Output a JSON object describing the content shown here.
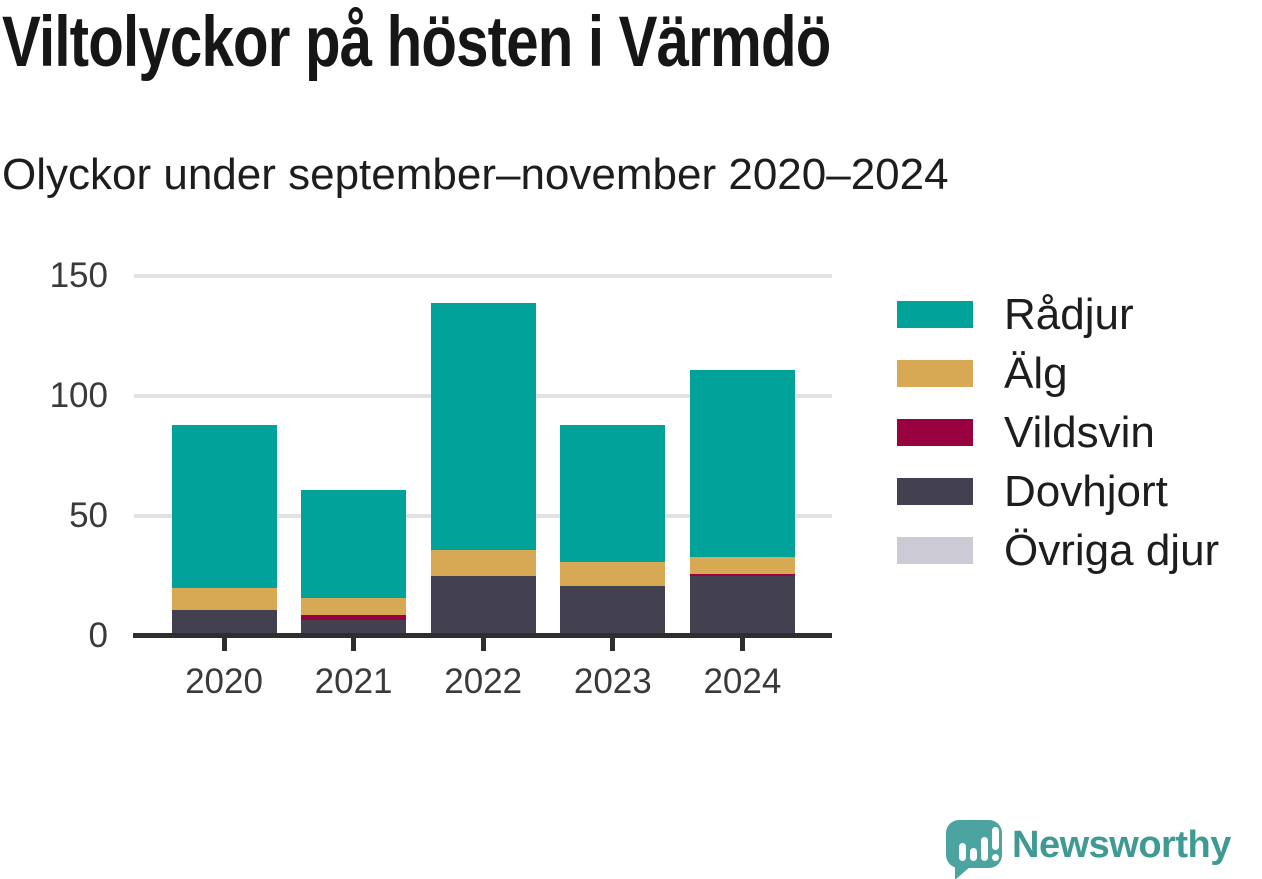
{
  "header": {
    "title": "Viltolyckor på hösten i Värmdö",
    "subtitle": "Olyckor under september–november 2020–2024"
  },
  "chart_data": {
    "type": "bar",
    "stacked": true,
    "title": "Viltolyckor på hösten i Värmdö",
    "subtitle": "Olyckor under september–november 2020–2024",
    "categories": [
      "2020",
      "2021",
      "2022",
      "2023",
      "2024"
    ],
    "series": [
      {
        "name": "Rådjur",
        "color": "#00a29a",
        "values": [
          68,
          45,
          103,
          57,
          78
        ]
      },
      {
        "name": "Älg",
        "color": "#d8a955",
        "values": [
          9,
          7,
          11,
          10,
          7
        ]
      },
      {
        "name": "Vildsvin",
        "color": "#97023f",
        "values": [
          0,
          2,
          0,
          0,
          1
        ]
      },
      {
        "name": "Dovhjort",
        "color": "#434050",
        "values": [
          10,
          6,
          24,
          20,
          24
        ]
      },
      {
        "name": "Övriga djur",
        "color": "#cbcad5",
        "values": [
          0,
          0,
          0,
          0,
          0
        ]
      }
    ],
    "totals": [
      87,
      60,
      138,
      87,
      110
    ],
    "stack_order_bottom_to_top": [
      "Dovhjort",
      "Vildsvin",
      "Älg",
      "Rådjur",
      "Övriga djur"
    ],
    "xlabel": "",
    "ylabel": "",
    "ylim": [
      0,
      150
    ],
    "yticks": [
      0,
      50,
      100,
      150
    ],
    "grid": "horizontal",
    "legend_position": "right"
  },
  "branding": {
    "logo_text": "Newsworthy",
    "logo_icon": "speech-bubble-bar-chart-icon",
    "brand_color": "#3f9a94"
  }
}
